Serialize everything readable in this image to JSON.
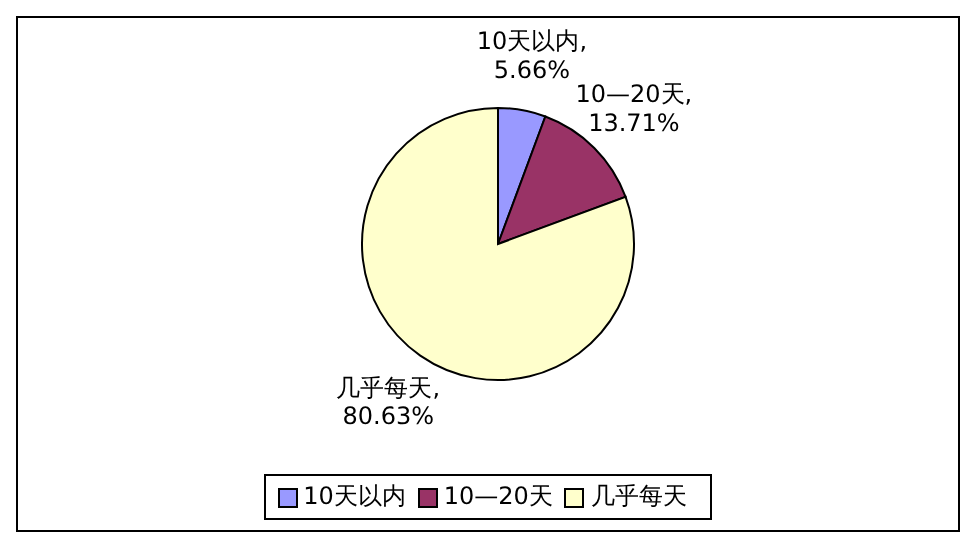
{
  "chart_data": {
    "type": "pie",
    "categories": [
      "10天以内",
      "10—20天",
      "几乎每天"
    ],
    "values": [
      5.66,
      13.71,
      80.63
    ],
    "colors": [
      "#9999ff",
      "#993366",
      "#ffffcc"
    ],
    "value_labels": [
      "10天以内,\n5.66%",
      "10—20天,\n13.71%",
      "几乎每天,\n80.63%"
    ],
    "legend": "bottom"
  }
}
